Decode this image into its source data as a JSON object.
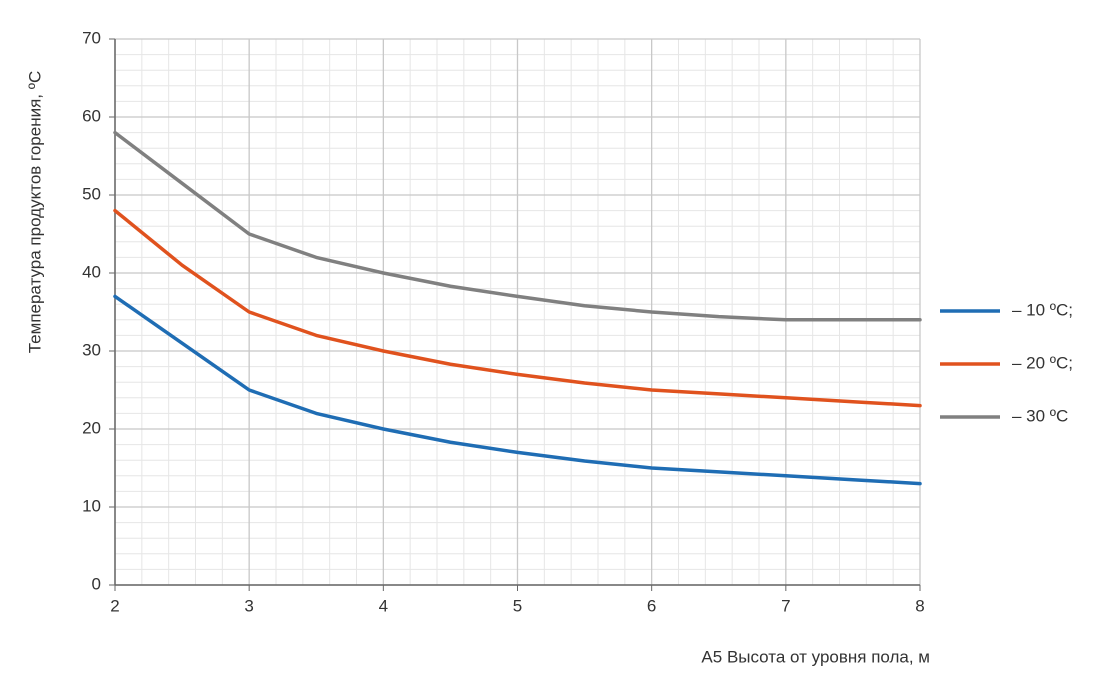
{
  "chart_data": {
    "type": "line",
    "x": [
      2,
      2.5,
      3,
      3.5,
      4,
      4.5,
      5,
      5.5,
      6,
      6.5,
      7,
      7.5,
      8
    ],
    "series": [
      {
        "name": "– 10 ºС;",
        "color": "#1f6db4",
        "values": [
          37,
          31,
          25,
          22,
          20,
          18.3,
          17,
          15.9,
          15,
          14.5,
          14,
          13.5,
          13
        ]
      },
      {
        "name": "– 20 ºС;",
        "color": "#e0521e",
        "values": [
          48,
          41,
          35,
          32,
          30,
          28.3,
          27,
          25.9,
          25,
          24.5,
          24,
          23.5,
          23
        ]
      },
      {
        "name": "– 30 ºС",
        "color": "#808080",
        "values": [
          58,
          51.5,
          45,
          42,
          40,
          38.3,
          37,
          35.8,
          35,
          34.4,
          34,
          34,
          34
        ]
      }
    ],
    "xlabel": "А5 Высота от уровня пола, м",
    "ylabel": "Температура продуктов горения, ºС",
    "xlim": [
      2,
      8
    ],
    "xticks": [
      2,
      3,
      4,
      5,
      6,
      7,
      8
    ],
    "ylim": [
      0,
      70
    ],
    "yticks": [
      0,
      10,
      20,
      30,
      40,
      50,
      60,
      70
    ],
    "grid": true,
    "minor_divisions": 5,
    "legend": "right"
  }
}
